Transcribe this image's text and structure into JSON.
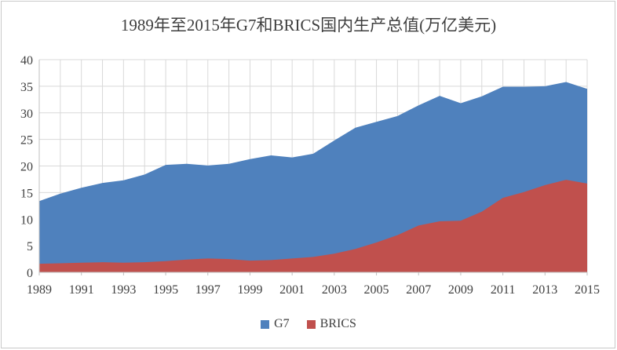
{
  "title": "1989年至2015年G7和BRICS国内生产总值(万亿美元)",
  "chart_data": {
    "type": "area",
    "overlap": true,
    "title": "1989年至2015年G7和BRICS国内生产总值(万亿美元)",
    "xlabel": "",
    "ylabel": "",
    "unit": "万亿美元",
    "x": [
      1989,
      1990,
      1991,
      1992,
      1993,
      1994,
      1995,
      1996,
      1997,
      1998,
      1999,
      2000,
      2001,
      2002,
      2003,
      2004,
      2005,
      2006,
      2007,
      2008,
      2009,
      2010,
      2011,
      2012,
      2013,
      2014,
      2015
    ],
    "series": [
      {
        "name": "G7",
        "color": "#4F81BD",
        "values": [
          13.4,
          14.8,
          15.9,
          16.8,
          17.3,
          18.4,
          20.2,
          20.4,
          20.1,
          20.4,
          21.3,
          22.0,
          21.6,
          22.3,
          24.8,
          27.2,
          28.3,
          29.4,
          31.4,
          33.2,
          31.8,
          33.1,
          34.9,
          34.9,
          35.0,
          35.8,
          34.5
        ]
      },
      {
        "name": "BRICS",
        "color": "#C0504D",
        "values": [
          1.6,
          1.7,
          1.8,
          1.9,
          1.8,
          1.9,
          2.1,
          2.4,
          2.6,
          2.5,
          2.2,
          2.3,
          2.6,
          2.9,
          3.5,
          4.4,
          5.6,
          7.0,
          8.8,
          9.6,
          9.7,
          11.4,
          14.0,
          15.1,
          16.4,
          17.4,
          16.7
        ]
      }
    ],
    "ylim": [
      0,
      40
    ],
    "y_ticks": [
      0,
      5,
      10,
      15,
      20,
      25,
      30,
      35,
      40
    ],
    "x_tick_labels": [
      "1989",
      "1991",
      "1993",
      "1995",
      "1997",
      "1999",
      "2001",
      "2003",
      "2005",
      "2007",
      "2009",
      "2011",
      "2013",
      "2015"
    ],
    "grid": "both",
    "gridline_color": "#D9D9D9",
    "axis_line_color": "#BFBFBF",
    "label_color": "#3f3f3f",
    "legend_position": "bottom"
  },
  "legend": {
    "items": [
      {
        "label": "G7",
        "swatch": "g7-swatch"
      },
      {
        "label": "BRICS",
        "swatch": "brics-swatch"
      }
    ]
  }
}
